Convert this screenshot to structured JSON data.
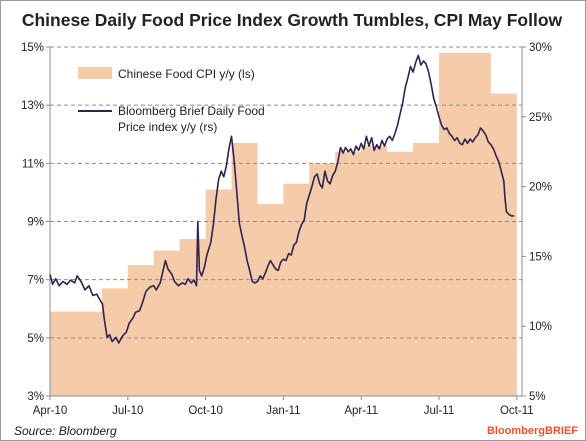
{
  "chart_data": {
    "type": "area",
    "title": "Chinese Daily Food Price Index Growth Tumbles, CPI May Follow",
    "source": "Source: Bloomberg",
    "brand": {
      "main": "Bloomberg",
      "suffix": "BRIEF",
      "color": "#e8532a"
    },
    "x_tick_labels": [
      "Apr-10",
      "Jul-10",
      "Oct-10",
      "Jan-11",
      "Apr-11",
      "Jul-11",
      "Oct-11"
    ],
    "x_tick_positions": [
      0,
      3,
      6,
      9,
      12,
      15,
      18
    ],
    "x_range": [
      0,
      18.2
    ],
    "y_left": {
      "ticks": [
        "3%",
        "5%",
        "7%",
        "9%",
        "11%",
        "13%",
        "15%"
      ],
      "ylim": [
        3,
        15
      ]
    },
    "y_right": {
      "ticks": [
        "5%",
        "10%",
        "15%",
        "20%",
        "25%",
        "30%"
      ],
      "ylim": [
        5,
        30
      ]
    },
    "grid": {
      "horizontal": true,
      "style": "dashed"
    },
    "legend": {
      "placement": "top-left"
    },
    "series": [
      {
        "name": "Chinese Food CPI y/y (ls)",
        "type": "area",
        "axis": "left",
        "color": "#f6cbaa",
        "months": [
          0,
          1,
          2,
          3,
          4,
          5,
          6,
          7,
          8,
          9,
          10,
          11,
          12,
          13,
          14,
          15,
          16,
          17
        ],
        "values": [
          5.9,
          5.9,
          6.7,
          7.5,
          8.0,
          8.4,
          10.1,
          11.7,
          9.6,
          10.3,
          11.0,
          11.4,
          11.6,
          11.4,
          11.7,
          14.8,
          14.8,
          13.4
        ]
      },
      {
        "name": "Bloomberg Brief Daily Food Price index y/y (rs)",
        "type": "line",
        "axis": "right",
        "color": "#2e2250",
        "points": [
          [
            0.0,
            13.7
          ],
          [
            0.1,
            13.0
          ],
          [
            0.22,
            13.4
          ],
          [
            0.35,
            12.9
          ],
          [
            0.5,
            13.2
          ],
          [
            0.65,
            13.0
          ],
          [
            0.8,
            13.3
          ],
          [
            0.95,
            13.1
          ],
          [
            1.05,
            13.6
          ],
          [
            1.2,
            13.2
          ],
          [
            1.35,
            12.6
          ],
          [
            1.5,
            12.9
          ],
          [
            1.65,
            12.2
          ],
          [
            1.8,
            12.3
          ],
          [
            1.95,
            11.8
          ],
          [
            2.02,
            11.6
          ],
          [
            2.1,
            10.4
          ],
          [
            2.2,
            9.2
          ],
          [
            2.3,
            9.4
          ],
          [
            2.4,
            8.9
          ],
          [
            2.55,
            9.2
          ],
          [
            2.65,
            8.8
          ],
          [
            2.8,
            9.3
          ],
          [
            2.95,
            9.6
          ],
          [
            3.05,
            10.2
          ],
          [
            3.2,
            10.6
          ],
          [
            3.3,
            11.0
          ],
          [
            3.45,
            11.1
          ],
          [
            3.55,
            11.6
          ],
          [
            3.7,
            12.5
          ],
          [
            3.85,
            12.8
          ],
          [
            4.0,
            12.9
          ],
          [
            4.1,
            12.6
          ],
          [
            4.25,
            13.1
          ],
          [
            4.35,
            13.9
          ],
          [
            4.45,
            14.7
          ],
          [
            4.55,
            14.1
          ],
          [
            4.7,
            13.7
          ],
          [
            4.8,
            13.2
          ],
          [
            4.95,
            12.9
          ],
          [
            5.1,
            13.1
          ],
          [
            5.22,
            13.0
          ],
          [
            5.32,
            13.4
          ],
          [
            5.45,
            13.1
          ],
          [
            5.55,
            13.3
          ],
          [
            5.65,
            12.9
          ],
          [
            5.7,
            17.5
          ],
          [
            5.76,
            14.0
          ],
          [
            5.85,
            13.6
          ],
          [
            5.95,
            14.2
          ],
          [
            6.05,
            15.1
          ],
          [
            6.2,
            16.0
          ],
          [
            6.3,
            17.3
          ],
          [
            6.4,
            19.1
          ],
          [
            6.5,
            20.5
          ],
          [
            6.6,
            21.1
          ],
          [
            6.7,
            20.7
          ],
          [
            6.8,
            21.5
          ],
          [
            6.9,
            22.7
          ],
          [
            7.0,
            23.6
          ],
          [
            7.1,
            21.9
          ],
          [
            7.2,
            19.7
          ],
          [
            7.3,
            17.4
          ],
          [
            7.4,
            16.5
          ],
          [
            7.5,
            15.7
          ],
          [
            7.6,
            14.7
          ],
          [
            7.7,
            14.0
          ],
          [
            7.8,
            13.2
          ],
          [
            7.9,
            13.1
          ],
          [
            8.0,
            13.2
          ],
          [
            8.1,
            13.6
          ],
          [
            8.2,
            13.4
          ],
          [
            8.3,
            13.8
          ],
          [
            8.4,
            14.3
          ],
          [
            8.5,
            14.7
          ],
          [
            8.6,
            14.4
          ],
          [
            8.7,
            14.1
          ],
          [
            8.8,
            14.0
          ],
          [
            8.9,
            14.6
          ],
          [
            9.0,
            14.8
          ],
          [
            9.1,
            14.7
          ],
          [
            9.2,
            15.2
          ],
          [
            9.3,
            15.1
          ],
          [
            9.4,
            15.8
          ],
          [
            9.5,
            16.0
          ],
          [
            9.6,
            16.8
          ],
          [
            9.7,
            17.3
          ],
          [
            9.8,
            17.6
          ],
          [
            9.9,
            18.8
          ],
          [
            10.0,
            19.4
          ],
          [
            10.1,
            20.0
          ],
          [
            10.2,
            20.7
          ],
          [
            10.3,
            20.9
          ],
          [
            10.4,
            20.2
          ],
          [
            10.5,
            19.9
          ],
          [
            10.6,
            21.1
          ],
          [
            10.7,
            20.4
          ],
          [
            10.8,
            20.2
          ],
          [
            10.9,
            20.8
          ],
          [
            11.0,
            21.1
          ],
          [
            11.1,
            21.8
          ],
          [
            11.2,
            22.8
          ],
          [
            11.3,
            22.4
          ],
          [
            11.4,
            22.8
          ],
          [
            11.5,
            22.5
          ],
          [
            11.6,
            22.7
          ],
          [
            11.7,
            22.3
          ],
          [
            11.8,
            22.9
          ],
          [
            11.9,
            22.6
          ],
          [
            12.0,
            23.1
          ],
          [
            12.1,
            22.7
          ],
          [
            12.2,
            23.6
          ],
          [
            12.3,
            22.9
          ],
          [
            12.4,
            23.5
          ],
          [
            12.5,
            22.6
          ],
          [
            12.6,
            23.0
          ],
          [
            12.7,
            22.7
          ],
          [
            12.8,
            23.3
          ],
          [
            12.9,
            22.9
          ],
          [
            13.0,
            23.4
          ],
          [
            13.1,
            23.6
          ],
          [
            13.2,
            23.3
          ],
          [
            13.3,
            23.8
          ],
          [
            13.4,
            24.4
          ],
          [
            13.5,
            25.2
          ],
          [
            13.6,
            26.0
          ],
          [
            13.7,
            27.1
          ],
          [
            13.8,
            27.8
          ],
          [
            13.9,
            28.6
          ],
          [
            14.0,
            28.2
          ],
          [
            14.1,
            28.9
          ],
          [
            14.2,
            29.4
          ],
          [
            14.3,
            28.7
          ],
          [
            14.4,
            29.0
          ],
          [
            14.5,
            28.8
          ],
          [
            14.6,
            28.2
          ],
          [
            14.7,
            27.3
          ],
          [
            14.8,
            26.3
          ],
          [
            14.9,
            25.7
          ],
          [
            15.0,
            25.0
          ],
          [
            15.1,
            24.4
          ],
          [
            15.2,
            24.1
          ],
          [
            15.3,
            24.2
          ],
          [
            15.4,
            23.8
          ],
          [
            15.5,
            23.6
          ],
          [
            15.6,
            23.3
          ],
          [
            15.7,
            23.5
          ],
          [
            15.8,
            23.1
          ],
          [
            15.9,
            23.0
          ],
          [
            16.0,
            23.4
          ],
          [
            16.1,
            23.1
          ],
          [
            16.2,
            23.4
          ],
          [
            16.3,
            23.2
          ],
          [
            16.4,
            23.5
          ],
          [
            16.5,
            23.7
          ],
          [
            16.6,
            24.2
          ],
          [
            16.7,
            24.0
          ],
          [
            16.8,
            23.7
          ],
          [
            16.9,
            23.2
          ],
          [
            17.0,
            23.0
          ],
          [
            17.1,
            22.7
          ],
          [
            17.2,
            22.2
          ],
          [
            17.3,
            21.8
          ],
          [
            17.4,
            21.1
          ],
          [
            17.5,
            20.4
          ],
          [
            17.55,
            19.1
          ],
          [
            17.6,
            18.2
          ],
          [
            17.7,
            18.0
          ],
          [
            17.8,
            17.9
          ],
          [
            17.9,
            17.9
          ]
        ]
      }
    ]
  }
}
